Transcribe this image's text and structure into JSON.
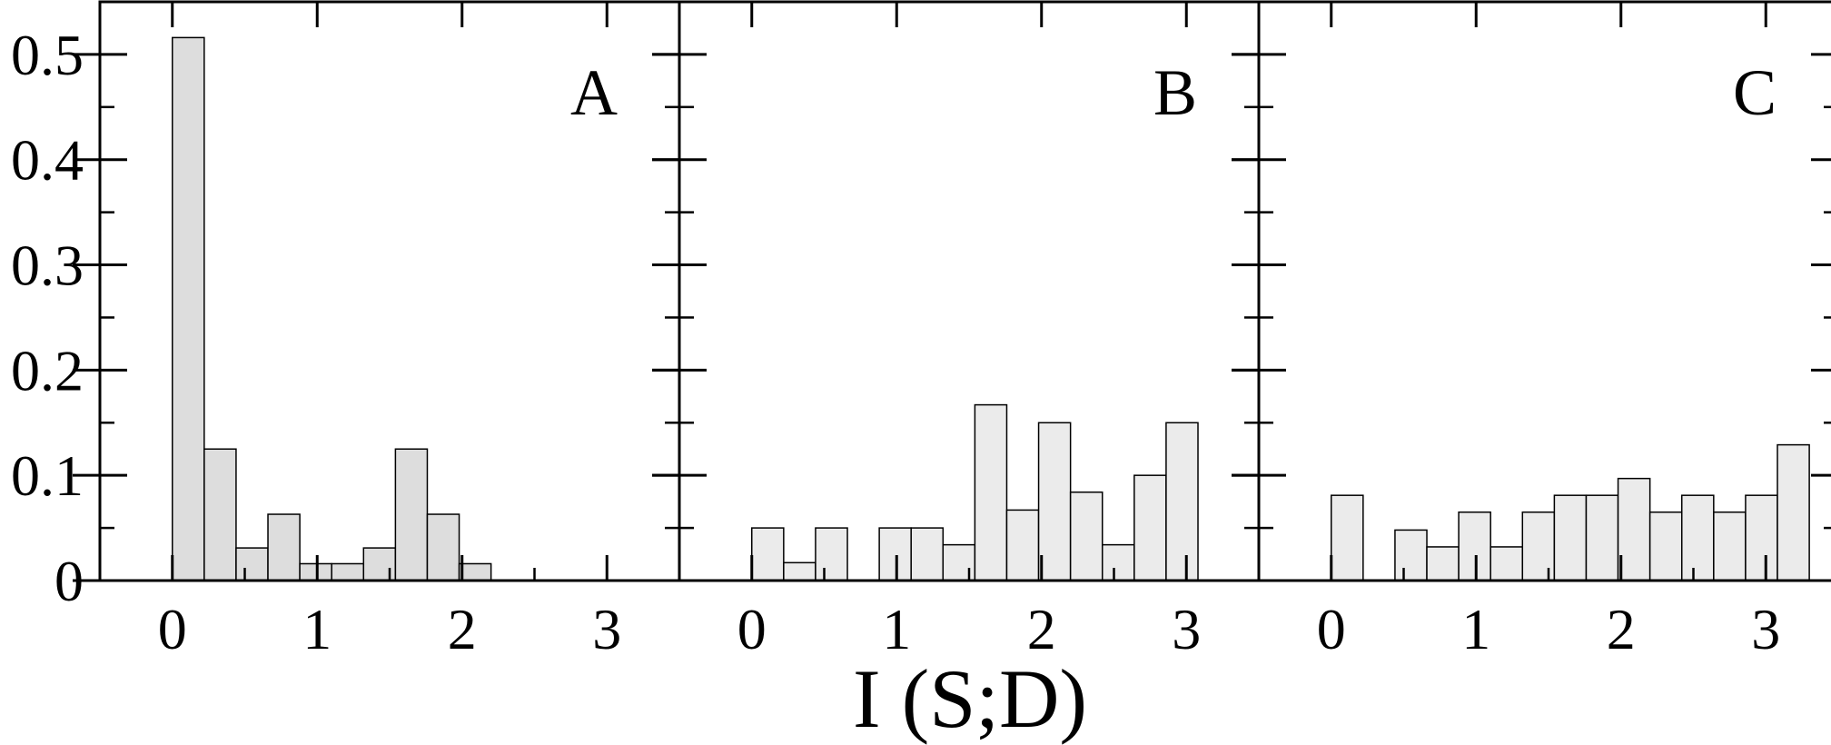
{
  "chart_data": [
    {
      "type": "bar",
      "panel_label": "A",
      "bar_color": "#dddddd",
      "bin_width": 0.22,
      "x": [
        0.11,
        0.33,
        0.55,
        0.77,
        0.99,
        1.21,
        1.43,
        1.65,
        1.87,
        2.09
      ],
      "values": [
        0.516,
        0.125,
        0.031,
        0.063,
        0.016,
        0.016,
        0.031,
        0.125,
        0.063,
        0.016
      ],
      "xlim": [
        -0.5,
        3.5
      ],
      "ylim": [
        0,
        0.55
      ]
    },
    {
      "type": "bar",
      "panel_label": "B",
      "bar_color": "#ebebeb",
      "bin_width": 0.22,
      "x": [
        0.11,
        0.33,
        0.55,
        0.99,
        1.21,
        1.43,
        1.65,
        1.87,
        2.09,
        2.31,
        2.53,
        2.75,
        2.97
      ],
      "values": [
        0.05,
        0.017,
        0.05,
        0.05,
        0.05,
        0.034,
        0.167,
        0.067,
        0.15,
        0.084,
        0.034,
        0.1,
        0.15
      ],
      "xlim": [
        -0.5,
        3.5
      ],
      "ylim": [
        0,
        0.55
      ]
    },
    {
      "type": "bar",
      "panel_label": "C",
      "bar_color": "#ebebeb",
      "bin_width": 0.22,
      "x": [
        0.11,
        0.55,
        0.77,
        0.99,
        1.21,
        1.43,
        1.65,
        1.87,
        2.09,
        2.31,
        2.53,
        2.75,
        2.97,
        3.19
      ],
      "values": [
        0.081,
        0.048,
        0.032,
        0.065,
        0.032,
        0.065,
        0.081,
        0.081,
        0.097,
        0.065,
        0.081,
        0.065,
        0.081,
        0.129
      ],
      "xlim": [
        -0.5,
        3.5
      ],
      "ylim": [
        0,
        0.55
      ]
    }
  ],
  "axes": {
    "y_ticks": [
      0,
      0.1,
      0.2,
      0.3,
      0.4,
      0.5
    ],
    "y_tick_labels": [
      "0",
      "0.1",
      "0.2",
      "0.3",
      "0.4",
      "0.5"
    ],
    "x_ticks": [
      0,
      1,
      2,
      3
    ],
    "x_tick_labels": [
      "0",
      "1",
      "2",
      "3"
    ],
    "xlabel": "I (S;D)"
  }
}
